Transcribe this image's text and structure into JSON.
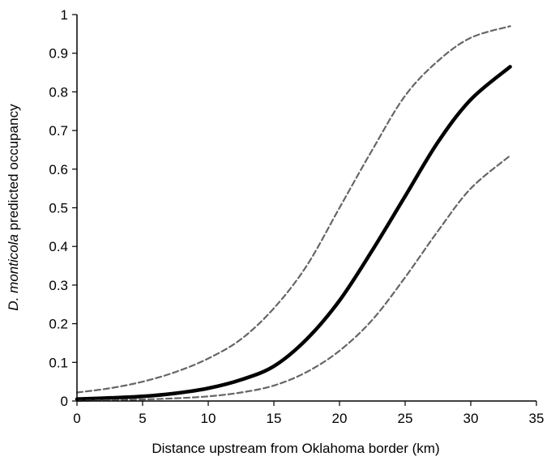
{
  "chart_data": {
    "type": "line",
    "xlabel": "Distance upstream from Oklahoma border (km)",
    "ylabel_italic": "D. monticola",
    "ylabel_rest": " predicted occupancy",
    "xlim": [
      0,
      35
    ],
    "ylim": [
      0,
      1
    ],
    "xticks": [
      "0",
      "5",
      "10",
      "15",
      "20",
      "25",
      "30",
      "35"
    ],
    "yticks": [
      "0",
      "0.1",
      "0.2",
      "0.3",
      "0.4",
      "0.5",
      "0.6",
      "0.7",
      "0.8",
      "0.9",
      "1"
    ],
    "grid": false,
    "legend": "none",
    "x": [
      0,
      2.5,
      5,
      7.5,
      10,
      12.5,
      15,
      17.5,
      20,
      22.5,
      25,
      27.5,
      30,
      33
    ],
    "series": [
      {
        "values": [
          0.005,
          0.008,
          0.012,
          0.02,
          0.033,
          0.055,
          0.09,
          0.16,
          0.26,
          0.39,
          0.53,
          0.67,
          0.78,
          0.865
        ],
        "color": "#000000",
        "style": "solid"
      },
      {
        "values": [
          0.022,
          0.033,
          0.05,
          0.075,
          0.11,
          0.16,
          0.24,
          0.35,
          0.5,
          0.65,
          0.79,
          0.88,
          0.94,
          0.97
        ],
        "color": "#666666",
        "style": "dashed"
      },
      {
        "values": [
          0.0,
          0.002,
          0.004,
          0.007,
          0.012,
          0.022,
          0.04,
          0.075,
          0.13,
          0.21,
          0.32,
          0.44,
          0.55,
          0.635
        ],
        "color": "#666666",
        "style": "dashed"
      }
    ]
  }
}
